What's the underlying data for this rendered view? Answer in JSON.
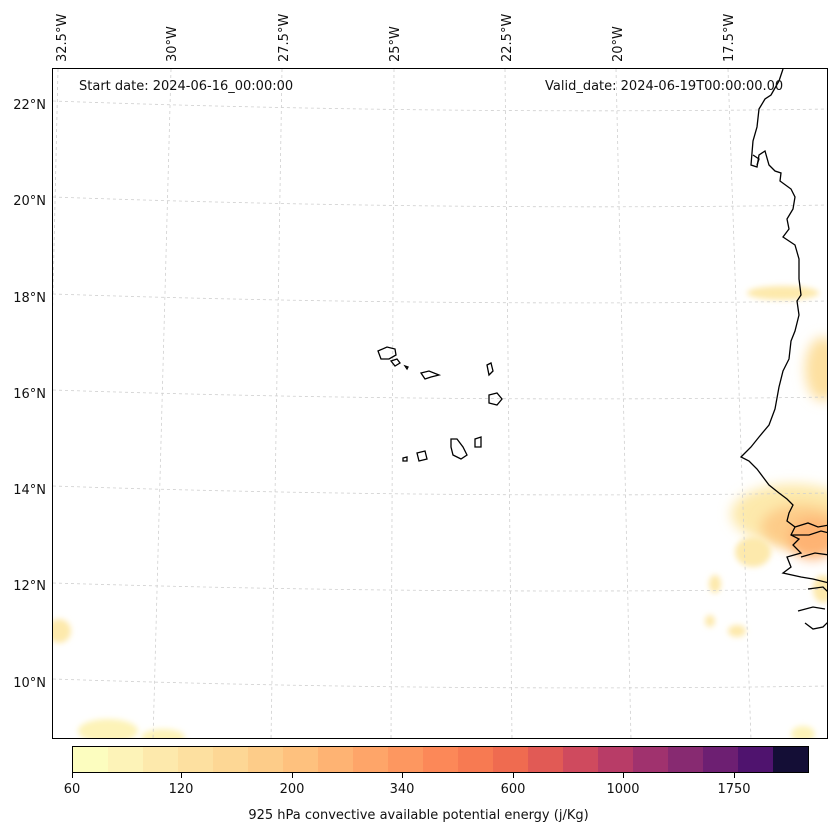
{
  "map": {
    "start_date": "Start date: 2024-06-16_00:00:00",
    "valid_date": "Valid_date: 2024-06-19T00:00:00.00",
    "lon_labels": [
      "32.5°W",
      "30°W",
      "27.5°W",
      "25°W",
      "22.5°W",
      "20°W",
      "17.5°W"
    ],
    "lat_labels": [
      "22°N",
      "20°N",
      "18°N",
      "16°N",
      "14°N",
      "12°N",
      "10°N"
    ],
    "gridlines": "dashed",
    "coastline_color": "#000000"
  },
  "colorbar": {
    "title": "925 hPa convective available potential energy (j/Kg)",
    "tick_labels": [
      "60",
      "120",
      "200",
      "340",
      "600",
      "1000",
      "1750"
    ],
    "colors": [
      "#fcfdbf",
      "#fdf3b8",
      "#fde9ac",
      "#fde0a0",
      "#fdd795",
      "#fdcc89",
      "#fec17e",
      "#feb373",
      "#fea569",
      "#fd9760",
      "#fc8858",
      "#f77a52",
      "#ef6b50",
      "#e15a55",
      "#cf4a5e",
      "#b83c67",
      "#a0326e",
      "#872a71",
      "#6d1f72",
      "#4f136e",
      "#140e36"
    ]
  }
}
